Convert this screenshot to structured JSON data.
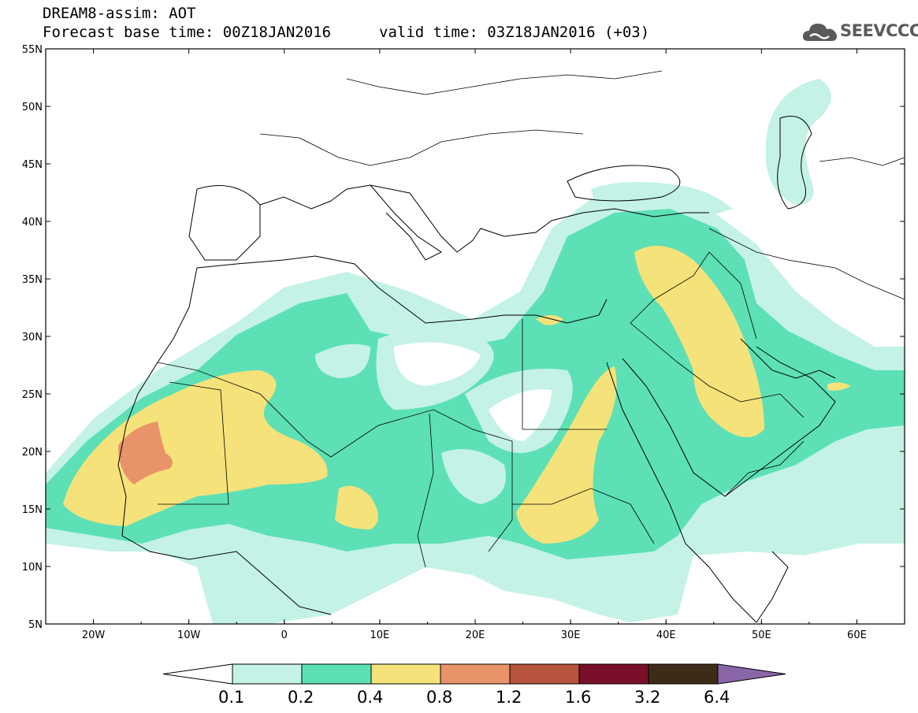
{
  "header": {
    "line1": "DREAM8-assim: AOT",
    "line2": "Forecast base time: 00Z18JAN2016",
    "valid": "valid time: 03Z18JAN2016 (+03)"
  },
  "logo": {
    "text": "SEEVCCC",
    "icon": "cloud-icon"
  },
  "map": {
    "lon_range": [
      -25,
      65
    ],
    "lat_range": [
      5,
      55
    ],
    "lat_labels": [
      "5N",
      "10N",
      "15N",
      "20N",
      "25N",
      "30N",
      "35N",
      "40N",
      "45N",
      "50N",
      "55N"
    ],
    "lon_labels": [
      "20W",
      "10W",
      "0",
      "10E",
      "20E",
      "30E",
      "40E",
      "50E",
      "60E"
    ]
  },
  "colorbar": {
    "labels": [
      "0.1",
      "0.2",
      "0.4",
      "0.8",
      "1.2",
      "1.6",
      "3.2",
      "6.4"
    ],
    "colors": [
      "#ffffff",
      "#c4f2e6",
      "#5de0b6",
      "#f5e27a",
      "#e8936a",
      "#b5533c",
      "#7a0f2a",
      "#3e2b17",
      "#8a66a8"
    ]
  }
}
